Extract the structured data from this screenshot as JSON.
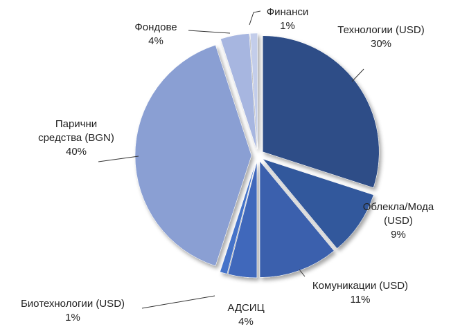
{
  "chart_data": {
    "type": "pie",
    "categories": [
      "Технологии (USD)",
      "Облекла/Мода (USD)",
      "Комуникации (USD)",
      "АДСИЦ",
      "Биотехнологии (USD)",
      "Парични средства (BGN)",
      "Фондове",
      "Финанси"
    ],
    "values": [
      30,
      9,
      11,
      4,
      1,
      40,
      4,
      1
    ],
    "value_labels": [
      "30%",
      "9%",
      "11%",
      "4%",
      "1%",
      "40%",
      "4%",
      "1%"
    ],
    "colors": [
      "#2e4d87",
      "#33589c",
      "#3a61ad",
      "#3f68bb",
      "#4573c9",
      "#8a9fd3",
      "#a7b6e0",
      "#c3cdea"
    ]
  }
}
